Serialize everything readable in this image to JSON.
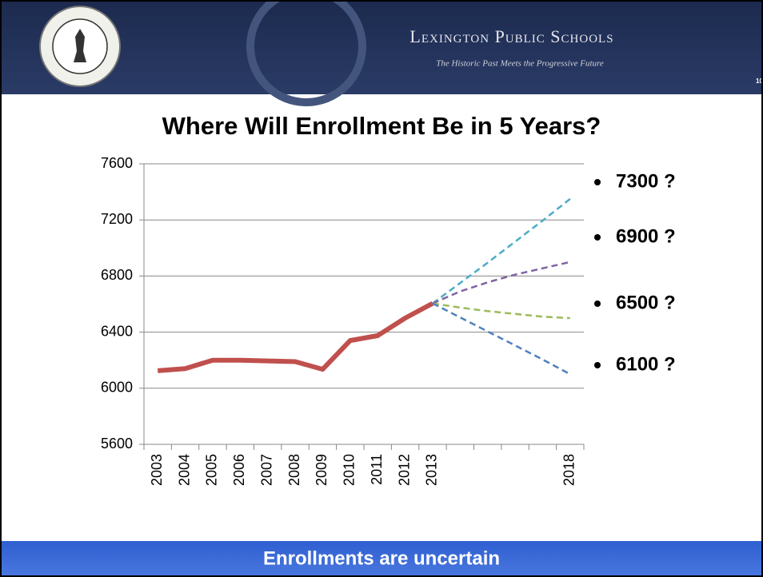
{
  "header": {
    "title": "Lexington Public Schools",
    "subtitle": "The Historic Past Meets the Progressive Future",
    "page": "10"
  },
  "chart_data": {
    "type": "line",
    "title": "Where Will Enrollment Be in 5 Years?",
    "categories": [
      "2003",
      "2004",
      "2005",
      "2006",
      "2007",
      "2008",
      "2009",
      "2010",
      "2011",
      "2012",
      "2013",
      null,
      null,
      null,
      null,
      "2018"
    ],
    "series": [
      {
        "color": "#c0504d",
        "style": "solid",
        "values": [
          6125,
          6140,
          6200,
          6200,
          6195,
          6190,
          6135,
          6340,
          6375,
          6500,
          6605,
          null,
          null,
          null,
          null,
          null
        ]
      },
      {
        "color": "#4bacc6",
        "style": "dashed",
        "values": [
          null,
          null,
          null,
          null,
          null,
          null,
          null,
          null,
          null,
          null,
          6605,
          6750,
          6895,
          7045,
          7195,
          7350
        ]
      },
      {
        "color": "#8064a2",
        "style": "dashed",
        "values": [
          null,
          null,
          null,
          null,
          null,
          null,
          null,
          null,
          null,
          null,
          6605,
          6690,
          6755,
          6810,
          6855,
          6900
        ]
      },
      {
        "color": "#9bbb59",
        "style": "dashed",
        "values": [
          null,
          null,
          null,
          null,
          null,
          null,
          null,
          null,
          null,
          null,
          6605,
          6575,
          6550,
          6530,
          6510,
          6500
        ]
      },
      {
        "color": "#4f81bd",
        "style": "dashed",
        "values": [
          null,
          null,
          null,
          null,
          null,
          null,
          null,
          null,
          null,
          null,
          6605,
          6505,
          6405,
          6305,
          6205,
          6100
        ]
      }
    ],
    "ylim": [
      5600,
      7600
    ],
    "yticks": [
      5600,
      6000,
      6400,
      6800,
      7200,
      7600
    ],
    "grid": true
  },
  "bullets": [
    "7300 ?",
    "6900 ?",
    "6500 ?",
    "6100 ?"
  ],
  "footer": "Enrollments are uncertain"
}
